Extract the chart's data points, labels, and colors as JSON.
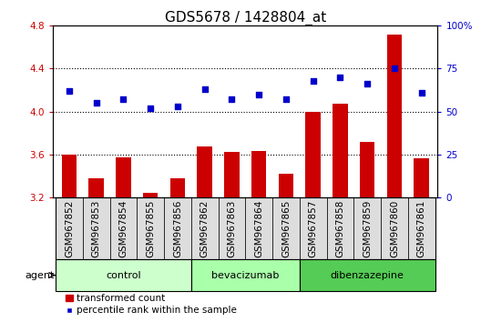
{
  "title": "GDS5678 / 1428804_at",
  "samples": [
    "GSM967852",
    "GSM967853",
    "GSM967854",
    "GSM967855",
    "GSM967856",
    "GSM967862",
    "GSM967863",
    "GSM967864",
    "GSM967865",
    "GSM967857",
    "GSM967858",
    "GSM967859",
    "GSM967860",
    "GSM967861"
  ],
  "bar_values": [
    3.6,
    3.38,
    3.57,
    3.24,
    3.38,
    3.67,
    3.62,
    3.63,
    3.42,
    4.0,
    4.07,
    3.72,
    4.72,
    3.56
  ],
  "dot_values": [
    62,
    55,
    57,
    52,
    53,
    63,
    57,
    60,
    57,
    68,
    70,
    66,
    75,
    61
  ],
  "bar_color": "#cc0000",
  "dot_color": "#0000cc",
  "ylim_left": [
    3.2,
    4.8
  ],
  "ylim_right": [
    0,
    100
  ],
  "yticks_left": [
    3.2,
    3.6,
    4.0,
    4.4,
    4.8
  ],
  "yticks_right": [
    0,
    25,
    50,
    75,
    100
  ],
  "ytick_labels_right": [
    "0",
    "25",
    "50",
    "75",
    "100%"
  ],
  "groups": [
    {
      "label": "control",
      "start": 0,
      "end": 5,
      "color": "#ccffcc"
    },
    {
      "label": "bevacizumab",
      "start": 5,
      "end": 9,
      "color": "#aaffaa"
    },
    {
      "label": "dibenzazepine",
      "start": 9,
      "end": 14,
      "color": "#55cc55"
    }
  ],
  "agent_label": "agent",
  "legend_bar_label": "transformed count",
  "legend_dot_label": "percentile rank within the sample",
  "background_color": "#ffffff",
  "plot_bg_color": "#ffffff",
  "sample_cell_color": "#dddddd",
  "title_fontsize": 11,
  "tick_fontsize": 7.5,
  "bar_bottom": 3.2,
  "grid_dotted_lines": [
    3.6,
    4.0,
    4.4
  ]
}
